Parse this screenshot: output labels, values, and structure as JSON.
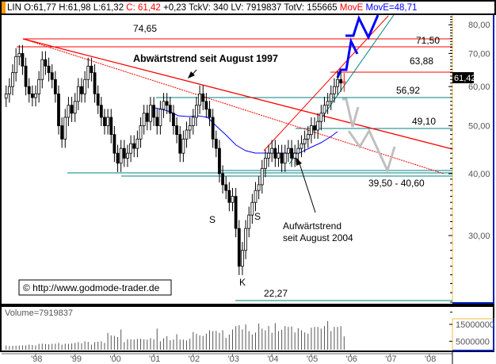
{
  "header": {
    "symbol": "LIN",
    "open": "O:61,77",
    "high": "H:61,98",
    "low": "L:61,32",
    "close": "C: 61,42",
    "change": "+0,23",
    "tick_volume": "TckV: 340",
    "last_volume": "LV: 7919837",
    "total_volume": "TotV: 155665",
    "mov_label_red": "MovE",
    "mov_label_blue": "MovE=48,71"
  },
  "colors": {
    "candle_up": "#ffffff",
    "candle_down": "#000000",
    "resistance": "#ff0000",
    "support": "#008080",
    "moving_average": "#0000ff",
    "projection_up": "#0000ff",
    "projection_down": "#c0c0c0"
  },
  "chart_data": {
    "type": "candlestick",
    "scale": "log",
    "ylim": [
      20,
      85
    ],
    "y_ticks": [
      "80,00",
      "70,00",
      "60,00",
      "50,00",
      "40,00",
      "30,00"
    ],
    "y_tick_values": [
      80,
      70,
      60,
      50,
      40,
      30
    ],
    "x_ticks": [
      "'98",
      "'99",
      "'00",
      "'01",
      "'02",
      "'03",
      "'04",
      "'05",
      "'06",
      "'07",
      "'08"
    ],
    "x_tick_years": [
      1998,
      1999,
      2000,
      2001,
      2002,
      2003,
      2004,
      2005,
      2006,
      2007,
      2008
    ],
    "period": "monthly",
    "start_month": "1997-04",
    "close": [
      58,
      60,
      64,
      69,
      70,
      66,
      60,
      58,
      57,
      58,
      62,
      68,
      66,
      64,
      62,
      58,
      50,
      47,
      52,
      55,
      53,
      56,
      60,
      58,
      62,
      66,
      64,
      58,
      55,
      52,
      50,
      52,
      48,
      44,
      42,
      45,
      43,
      44,
      46,
      45,
      47,
      50,
      53,
      51,
      55,
      52,
      50,
      54,
      56,
      55,
      53,
      50,
      48,
      44,
      47,
      49,
      50,
      52,
      55,
      58,
      56,
      54,
      52,
      47,
      45,
      40,
      38,
      37,
      35,
      36,
      31,
      26,
      28,
      31,
      33,
      35,
      37,
      38,
      41,
      43,
      44,
      45,
      43,
      44,
      42,
      44,
      45,
      43,
      44,
      45,
      46,
      47,
      48,
      50,
      49,
      51,
      53,
      55,
      56,
      58,
      60,
      62,
      61,
      61.42
    ],
    "last_price_label": "61,42",
    "levels": [
      {
        "value": 74.65,
        "label": "74,65",
        "color": "red"
      },
      {
        "value": 71.5,
        "label": "71,50",
        "color": "red"
      },
      {
        "value": 63.88,
        "label": "63,88",
        "color": "red"
      },
      {
        "value": 56.92,
        "label": "56,92",
        "color": "teal"
      },
      {
        "value": 49.1,
        "label": "49,10",
        "color": "teal"
      },
      {
        "value": 40.6,
        "label": "39,50 - 40,60",
        "color": "teal"
      },
      {
        "value": 22.27,
        "label": "22,27",
        "color": "teal"
      }
    ],
    "annotations": {
      "downtrend": "Abwärtstrend seit August 1997",
      "uptrend_line1": "Aufwärtstrend",
      "uptrend_line2": "seit August 2004",
      "shoulder_left": "S",
      "shoulder_right": "S",
      "head": "K"
    },
    "volume": {
      "label": "Volume=7919837",
      "y_ticks": [
        "15000000",
        "5000000"
      ],
      "y_tick_values": [
        15000000,
        5000000
      ],
      "values_millions": [
        2.5,
        2.2,
        2.3,
        2.4,
        2.5,
        2.6,
        2.5,
        3,
        2.8,
        2.5,
        3.5,
        3.6,
        3.4,
        3.2,
        3.5,
        3.6,
        4,
        3,
        3.6,
        3.5,
        3.7,
        4,
        4.5,
        3.8,
        5,
        4.6,
        3,
        4.5,
        4.7,
        5,
        4,
        10,
        8.5,
        8.2,
        7.5,
        12,
        4.5,
        6.2,
        6.2,
        6,
        6.4,
        6.5,
        6.2,
        6,
        6.8,
        6.2,
        12.5,
        5,
        6.8,
        8,
        5.6,
        6,
        9.2,
        6,
        6,
        5.5,
        6.5,
        10.5,
        9.5,
        8.5,
        8.2,
        9.5,
        11.5,
        11,
        11.2,
        10,
        11.5,
        7,
        9,
        12,
        14,
        14.5,
        12,
        15,
        11,
        9,
        10.2,
        15.5,
        12.5,
        11.5,
        14,
        10,
        15.8,
        11,
        11.8,
        14,
        13.5,
        13.8,
        10.2,
        12.8,
        11.5,
        10.2,
        9.5,
        13,
        13.5,
        13.5,
        12.5,
        14,
        17,
        11,
        13.5,
        13.5,
        14,
        7.9
      ]
    }
  },
  "footer": {
    "copyright": "© http://www.godmode-trader.de"
  }
}
